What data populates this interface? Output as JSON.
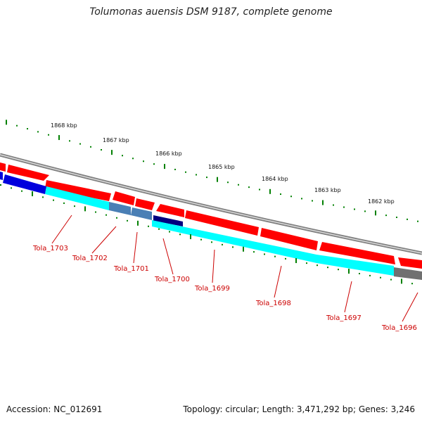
{
  "title": "Tolumonas auensis DSM 9187, complete genome",
  "footer": {
    "accession": "Accession: NC_012691",
    "summary": "Topology: circular; Length: 3,471,292 bp; Genes: 3,246"
  },
  "colors": {
    "forward_cds": "#ff0000",
    "reverse_cds": "#00ffff",
    "gene_label": "#cc0000",
    "backbone": "#808080",
    "tick": "#008000",
    "dark_blue": "#0000dd",
    "navy": "#000080",
    "steel": "#4a7fb5",
    "grey_feature": "#707070"
  },
  "scale_labels": [
    "1868 kbp",
    "1867 kbp",
    "1866 kbp",
    "1865 kbp",
    "1864 kbp",
    "1863 kbp",
    "1862 kbp"
  ],
  "gene_labels": [
    "Tola_1703",
    "Tola_1702",
    "Tola_1701",
    "Tola_1700",
    "Tola_1699",
    "Tola_1698",
    "Tola_1697",
    "Tola_1696"
  ]
}
